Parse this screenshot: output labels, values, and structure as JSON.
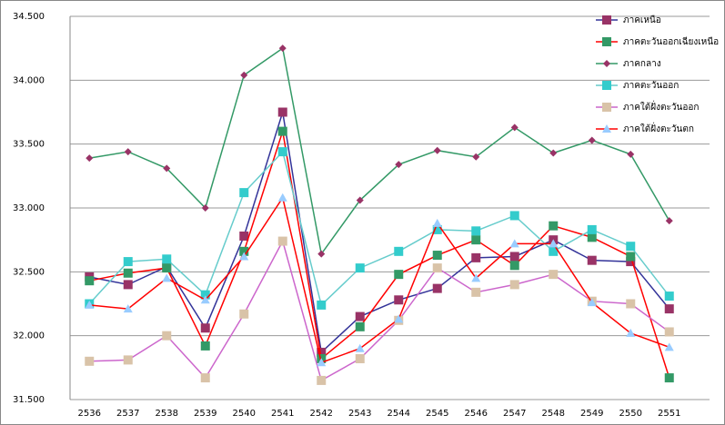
{
  "chart_data": {
    "type": "line",
    "categories": [
      "2536",
      "2537",
      "2538",
      "2539",
      "2540",
      "2541",
      "2542",
      "2543",
      "2544",
      "2545",
      "2546",
      "2547",
      "2548",
      "2549",
      "2550",
      "2551"
    ],
    "series": [
      {
        "name": "ภาคเหนือ",
        "color": "#333399",
        "marker_color": "#993366",
        "marker": "square",
        "values": [
          32.46,
          32.4,
          32.54,
          32.06,
          32.78,
          33.75,
          31.87,
          32.15,
          32.28,
          32.37,
          32.61,
          32.62,
          32.75,
          32.59,
          32.58,
          32.21
        ]
      },
      {
        "name": "ภาคตะวันออกเฉียงเหนือ",
        "color": "#ff0000",
        "marker_color": "#339966",
        "marker": "square",
        "values": [
          32.43,
          32.49,
          32.53,
          31.92,
          32.66,
          33.6,
          31.82,
          32.07,
          32.48,
          32.63,
          32.75,
          32.55,
          32.86,
          32.77,
          32.62,
          31.67
        ]
      },
      {
        "name": "ภาคกลาง",
        "color": "#339966",
        "marker_color": "#993366",
        "marker": "diamond",
        "values": [
          33.39,
          33.44,
          33.31,
          33.0,
          34.04,
          34.25,
          32.64,
          33.06,
          33.34,
          33.45,
          33.4,
          33.63,
          33.43,
          33.53,
          33.42,
          32.9
        ]
      },
      {
        "name": "ภาคตะวันออก",
        "color": "#66cccc",
        "marker_color": "#33cccc",
        "marker": "square",
        "values": [
          32.25,
          32.58,
          32.6,
          32.32,
          33.12,
          33.44,
          32.24,
          32.53,
          32.66,
          32.83,
          32.82,
          32.94,
          32.66,
          32.83,
          32.7,
          32.31
        ]
      },
      {
        "name": "ภาคใต้ฝั่งตะวันออก",
        "color": "#cc66cc",
        "marker_color": "#d9c3a8",
        "marker": "square",
        "values": [
          31.8,
          31.81,
          32.0,
          31.67,
          32.17,
          32.74,
          31.65,
          31.82,
          32.12,
          32.53,
          32.34,
          32.4,
          32.48,
          32.27,
          32.25,
          32.03
        ]
      },
      {
        "name": "ภาคใต้ฝั่งตะวันตก",
        "color": "#ff0000",
        "marker_color": "#99ccff",
        "marker": "triangle",
        "values": [
          32.24,
          32.21,
          32.45,
          32.28,
          32.62,
          33.08,
          31.79,
          31.9,
          32.13,
          32.88,
          32.45,
          32.72,
          32.72,
          32.26,
          32.02,
          31.91
        ]
      }
    ],
    "ylim": [
      31.5,
      34.5
    ],
    "yticks": [
      {
        "value": 31.5,
        "label": "31.500"
      },
      {
        "value": 32,
        "label": "32.000"
      },
      {
        "value": 32.5,
        "label": "32.500"
      },
      {
        "value": 33,
        "label": "33.000"
      },
      {
        "value": 33.5,
        "label": "33.500"
      },
      {
        "value": 34,
        "label": "34.000"
      },
      {
        "value": 34.5,
        "label": "34.500"
      }
    ],
    "grid": true,
    "legend": "top-right"
  }
}
